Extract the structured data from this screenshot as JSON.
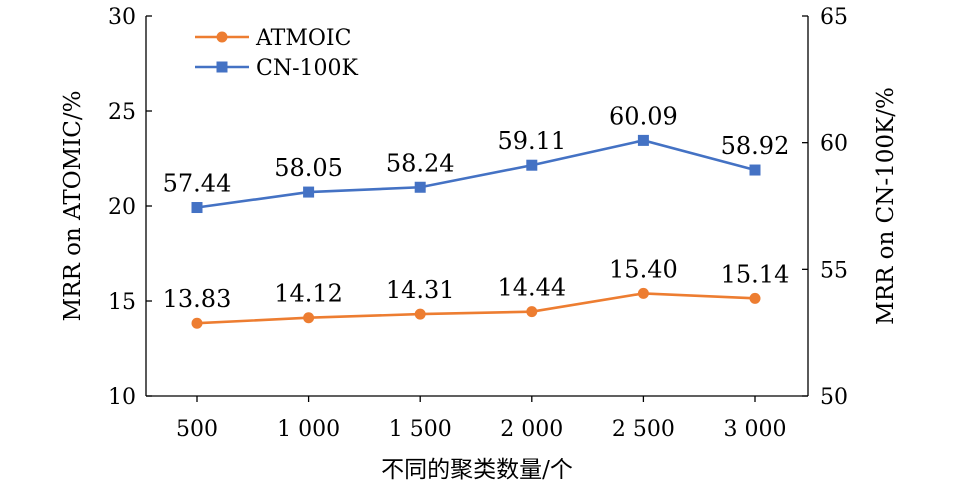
{
  "chart_data": {
    "type": "line",
    "categories": [
      "500",
      "1 000",
      "1 500",
      "2 000",
      "2 500",
      "3 000"
    ],
    "xlabel": "不同的聚类数量/个",
    "ylabel_left": "MRR on ATOMIC/%",
    "ylabel_right": "MRR on CN-100K/%",
    "ylim_left": [
      10,
      30
    ],
    "ylim_right": [
      50,
      65
    ],
    "yticks_left": [
      "10",
      "15",
      "20",
      "25",
      "30"
    ],
    "yticks_right": [
      "50",
      "55",
      "60",
      "65"
    ],
    "grid": false,
    "legend_position": "top-left",
    "series": [
      {
        "name": "ATMOIC",
        "axis": "left",
        "color": "#ED7D31",
        "marker": "circle",
        "values": [
          13.83,
          14.12,
          14.31,
          14.44,
          15.4,
          15.14
        ],
        "labels": [
          "13.83",
          "14.12",
          "14.31",
          "14.44",
          "15.40",
          "15.14"
        ]
      },
      {
        "name": "CN-100K",
        "axis": "right",
        "color": "#4472C4",
        "marker": "square",
        "values": [
          57.44,
          58.05,
          58.24,
          59.11,
          60.09,
          58.92
        ],
        "labels": [
          "57.44",
          "58.05",
          "58.24",
          "59.11",
          "60.09",
          "58.92"
        ]
      }
    ]
  }
}
